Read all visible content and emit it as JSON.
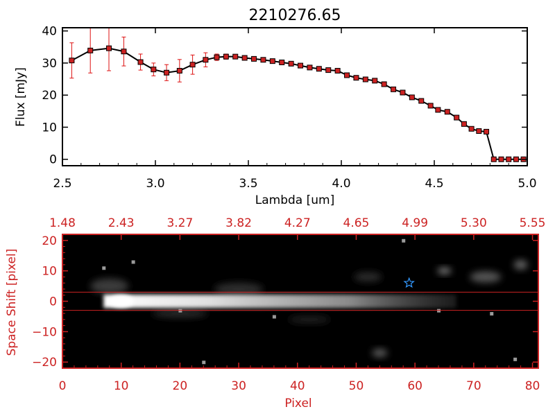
{
  "chart_data": [
    {
      "type": "line",
      "title": "2210276.65",
      "xlabel": "Lambda [um]",
      "ylabel": "Flux [mJy]",
      "xlim": [
        2.5,
        5.0
      ],
      "ylim": [
        -2,
        41
      ],
      "x_ticks": [
        2.5,
        3.0,
        3.5,
        4.0,
        4.5,
        5.0
      ],
      "x_tick_labels": [
        "2.5",
        "3.0",
        "3.5",
        "4.0",
        "4.5",
        "5.0"
      ],
      "y_ticks": [
        0,
        10,
        20,
        30,
        40
      ],
      "y_tick_labels": [
        "0",
        "10",
        "20",
        "30",
        "40"
      ],
      "colors": {
        "line": "#000000",
        "marker": "#cc2222",
        "errorbar": "#dd1111"
      },
      "series": [
        {
          "x": [
            2.55,
            2.65,
            2.75,
            2.83,
            2.92,
            2.99,
            3.06,
            3.13,
            3.2,
            3.27,
            3.33,
            3.38,
            3.43,
            3.48,
            3.53,
            3.58,
            3.63,
            3.68,
            3.73,
            3.78,
            3.83,
            3.88,
            3.93,
            3.98,
            4.03,
            4.08,
            4.13,
            4.18,
            4.23,
            4.28,
            4.33,
            4.38,
            4.43,
            4.48,
            4.52,
            4.57,
            4.62,
            4.66,
            4.7,
            4.74,
            4.78,
            4.82,
            4.86,
            4.9,
            4.94,
            4.98
          ],
          "y": [
            30.8,
            33.9,
            34.6,
            33.6,
            30.3,
            28.0,
            27.0,
            27.6,
            29.5,
            31.0,
            31.8,
            32.0,
            32.0,
            31.6,
            31.3,
            31.0,
            30.6,
            30.2,
            29.8,
            29.2,
            28.6,
            28.2,
            27.8,
            27.6,
            26.2,
            25.4,
            24.9,
            24.5,
            23.4,
            21.8,
            20.8,
            19.3,
            18.2,
            16.7,
            15.4,
            14.8,
            13.0,
            11.0,
            9.5,
            8.8,
            8.6,
            0.0,
            0.0,
            0.0,
            0.0,
            0.0
          ],
          "yerr": [
            5.5,
            7.0,
            7.0,
            4.5,
            2.5,
            2.0,
            2.5,
            3.5,
            3.0,
            2.2,
            1.0,
            0.8,
            0.6,
            0.5,
            0.5,
            0.5,
            0.5,
            0.5,
            0.5,
            0.5,
            0.5,
            0.5,
            0.5,
            0.5,
            0.5,
            0.5,
            0.5,
            0.5,
            0.5,
            0.5,
            0.5,
            0.5,
            0.5,
            0.5,
            0.5,
            0.5,
            0.5,
            0.5,
            0.5,
            0.5,
            0.5,
            0,
            0,
            0,
            0,
            0
          ]
        }
      ],
      "grid": false
    },
    {
      "type": "heatmap",
      "xlabel": "Pixel",
      "ylabel": "Space Shift [pixel]",
      "xlim": [
        0,
        81
      ],
      "ylim": [
        -22,
        22
      ],
      "x_ticks": [
        0,
        10,
        20,
        30,
        40,
        50,
        60,
        70,
        80
      ],
      "x_tick_labels": [
        "0",
        "10",
        "20",
        "30",
        "40",
        "50",
        "60",
        "70",
        "80"
      ],
      "y_ticks": [
        -20,
        -10,
        0,
        10,
        20
      ],
      "y_tick_labels": [
        "−20",
        "−10",
        "0",
        "10",
        "20"
      ],
      "top_axis_labels": [
        "1.48",
        "2.43",
        "3.27",
        "3.82",
        "4.27",
        "4.65",
        "4.99",
        "5.30",
        "5.55"
      ],
      "extraction_aperture": [
        -3,
        3
      ],
      "star_marker": {
        "x": 59,
        "y": 6
      },
      "colors": {
        "axis": "#cc2222",
        "aperture": "#cc2222",
        "star": "#3399ff",
        "background": "#000000"
      },
      "grid": false
    }
  ]
}
